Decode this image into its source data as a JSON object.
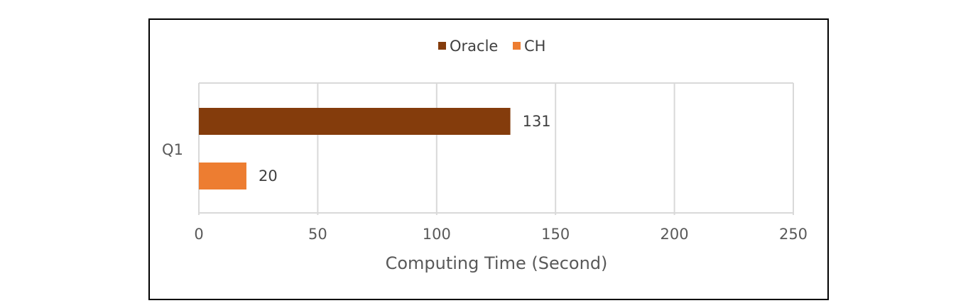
{
  "chart_data": {
    "type": "bar",
    "orientation": "horizontal",
    "categories": [
      "Q1"
    ],
    "series": [
      {
        "name": "Oracle",
        "values": [
          131
        ],
        "color": "#843C0C"
      },
      {
        "name": "CH",
        "values": [
          20
        ],
        "color": "#ED7D31"
      }
    ],
    "data_labels": [
      "131",
      "20"
    ],
    "xlabel": "Computing Time (Second)",
    "ylabel": "",
    "xlim": [
      0,
      250
    ],
    "xticks": [
      0,
      50,
      100,
      150,
      200,
      250
    ],
    "xtick_labels": [
      "0",
      "50",
      "100",
      "150",
      "200",
      "250"
    ],
    "grid": "vertical",
    "legend_position": "top-center"
  }
}
